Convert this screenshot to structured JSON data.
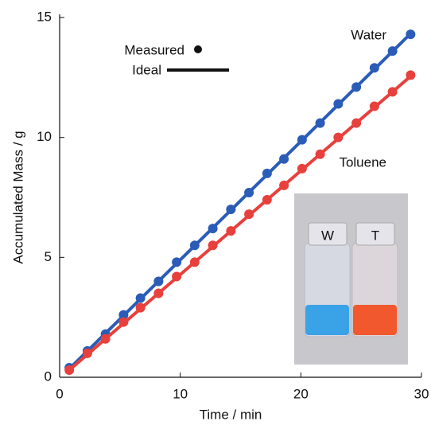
{
  "chart_data": {
    "type": "scatter",
    "xlabel": "Time / min",
    "ylabel": "Accumulated Mass / g",
    "xlim": [
      0,
      30
    ],
    "xticks": [
      0,
      10,
      20,
      30
    ],
    "ylim": [
      0,
      15
    ],
    "yticks": [
      0,
      5,
      10,
      15
    ],
    "x": [
      0.8,
      2.3,
      3.8,
      5.3,
      6.7,
      8.2,
      9.7,
      11.2,
      12.7,
      14.2,
      15.7,
      17.2,
      18.6,
      20.1,
      21.6,
      23.1,
      24.6,
      26.1,
      27.6,
      29.1
    ],
    "series": [
      {
        "name": "Water",
        "color": "#2a5cb8",
        "values": [
          0.4,
          1.1,
          1.8,
          2.6,
          3.3,
          4.0,
          4.8,
          5.5,
          6.2,
          7.0,
          7.7,
          8.5,
          9.1,
          9.9,
          10.6,
          11.4,
          12.1,
          12.9,
          13.6,
          14.3
        ],
        "ideal": [
          0.35,
          14.33
        ]
      },
      {
        "name": "Toluene",
        "color": "#e8403c",
        "values": [
          0.3,
          1.0,
          1.6,
          2.3,
          2.9,
          3.5,
          4.2,
          4.8,
          5.5,
          6.1,
          6.8,
          7.4,
          8.0,
          8.7,
          9.3,
          10.0,
          10.6,
          11.3,
          11.9,
          12.6
        ],
        "ideal": [
          0.3,
          12.55
        ]
      }
    ],
    "ideal_x": [
      0.8,
      29.1
    ],
    "legend": [
      "Measured",
      "Ideal"
    ],
    "inset": {
      "labels": [
        "W",
        "T"
      ]
    }
  }
}
